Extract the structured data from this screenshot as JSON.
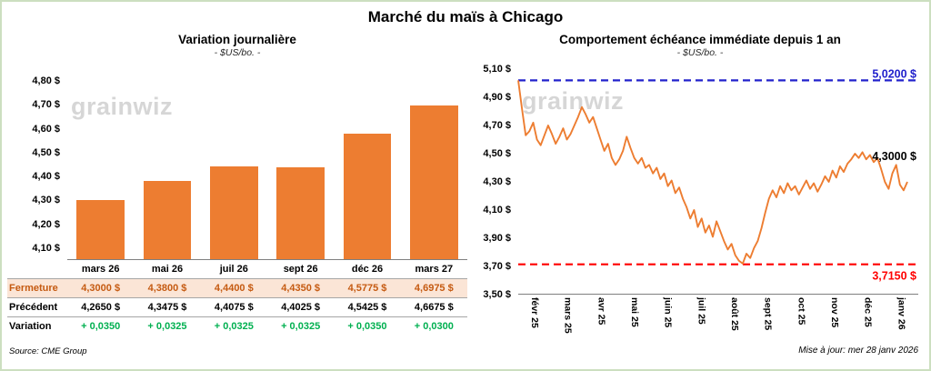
{
  "title": "Marché du maïs à Chicago",
  "colors": {
    "orange": "#ED7D31",
    "fermeture_bg": "#FBE5D6",
    "fermeture_text": "#C55A11",
    "variation_green": "#00B050",
    "blue_line": "#2222CC",
    "red_line": "#FF0000",
    "watermark_gray": "#D6D6D6"
  },
  "left": {
    "title": "Variation journalière",
    "subtitle": "- $US/bo. -",
    "watermark": "grainwiz",
    "source": "Source: CME Group",
    "chart_data": {
      "type": "bar",
      "categories": [
        "mars 26",
        "mai 26",
        "juil 26",
        "sept 26",
        "déc 26",
        "mars 27"
      ],
      "values": [
        4.3,
        4.38,
        4.44,
        4.435,
        4.5775,
        4.6975
      ],
      "title": "Variation journalière",
      "xlabel": "",
      "ylabel": "$US/bo.",
      "ylim": [
        4.05,
        4.85
      ],
      "yticks": [
        4.1,
        4.2,
        4.3,
        4.4,
        4.5,
        4.6,
        4.7,
        4.8
      ],
      "ytick_labels": [
        "4,10 $",
        "4,20 $",
        "4,30 $",
        "4,40 $",
        "4,50 $",
        "4,60 $",
        "4,70 $",
        "4,80 $"
      ],
      "grid": false,
      "legend": false
    },
    "table": {
      "rows": [
        {
          "label": "Fermeture",
          "style": "fermeture",
          "values": [
            "4,3000  $",
            "4,3800  $",
            "4,4400  $",
            "4,4350  $",
            "4,5775  $",
            "4,6975  $"
          ]
        },
        {
          "label": "Précédent",
          "style": "precedent",
          "values": [
            "4,2650  $",
            "4,3475  $",
            "4,4075  $",
            "4,4025  $",
            "4,5425  $",
            "4,6675  $"
          ]
        },
        {
          "label": "Variation",
          "style": "variation",
          "values": [
            "+ 0,0350",
            "+ 0,0325",
            "+ 0,0325",
            "+ 0,0325",
            "+ 0,0350",
            "+ 0,0300"
          ]
        }
      ]
    }
  },
  "right": {
    "title": "Comportement échéance immédiate depuis 1 an",
    "subtitle": "- $US/bo. -",
    "watermark": "grainwiz",
    "updated": "Mise à jour: mer 28 janv 2026",
    "chart_data": {
      "type": "line",
      "title": "Comportement échéance immédiate depuis 1 an",
      "xlabel": "",
      "ylabel": "$US/bo.",
      "ylim": [
        3.5,
        5.1
      ],
      "yticks": [
        3.5,
        3.7,
        3.9,
        4.1,
        4.3,
        4.5,
        4.7,
        4.9,
        5.1
      ],
      "ytick_labels": [
        "3,50 $",
        "3,70 $",
        "3,90 $",
        "4,10 $",
        "4,30 $",
        "4,50 $",
        "4,70 $",
        "4,90 $",
        "5,10 $"
      ],
      "x_ticks": [
        "févr 25",
        "mars 25",
        "avr 25",
        "mai 25",
        "juin 25",
        "juil 25",
        "août 25",
        "sept 25",
        "oct 25",
        "nov 25",
        "déc 25",
        "janv 26"
      ],
      "high_line": {
        "value": 5.02,
        "label": "5,0200 $"
      },
      "low_line": {
        "value": 3.715,
        "label": "3,7150 $"
      },
      "last_value": 4.3,
      "last_label": "4,3000 $",
      "grid": false,
      "legend": false,
      "values": [
        5.02,
        4.82,
        4.63,
        4.66,
        4.72,
        4.6,
        4.56,
        4.63,
        4.7,
        4.64,
        4.57,
        4.62,
        4.68,
        4.6,
        4.64,
        4.7,
        4.76,
        4.83,
        4.78,
        4.72,
        4.76,
        4.68,
        4.6,
        4.52,
        4.57,
        4.47,
        4.42,
        4.46,
        4.52,
        4.62,
        4.54,
        4.47,
        4.43,
        4.47,
        4.4,
        4.42,
        4.36,
        4.4,
        4.32,
        4.36,
        4.27,
        4.31,
        4.22,
        4.26,
        4.18,
        4.12,
        4.04,
        4.1,
        3.98,
        4.04,
        3.94,
        3.99,
        3.91,
        4.02,
        3.95,
        3.88,
        3.82,
        3.86,
        3.78,
        3.74,
        3.72,
        3.79,
        3.76,
        3.83,
        3.88,
        3.97,
        4.08,
        4.18,
        4.24,
        4.19,
        4.27,
        4.22,
        4.29,
        4.24,
        4.27,
        4.21,
        4.26,
        4.31,
        4.25,
        4.29,
        4.23,
        4.28,
        4.34,
        4.3,
        4.38,
        4.33,
        4.41,
        4.37,
        4.43,
        4.46,
        4.5,
        4.47,
        4.51,
        4.46,
        4.49,
        4.44,
        4.47,
        4.39,
        4.3,
        4.25,
        4.36,
        4.42,
        4.28,
        4.24,
        4.3
      ]
    }
  }
}
